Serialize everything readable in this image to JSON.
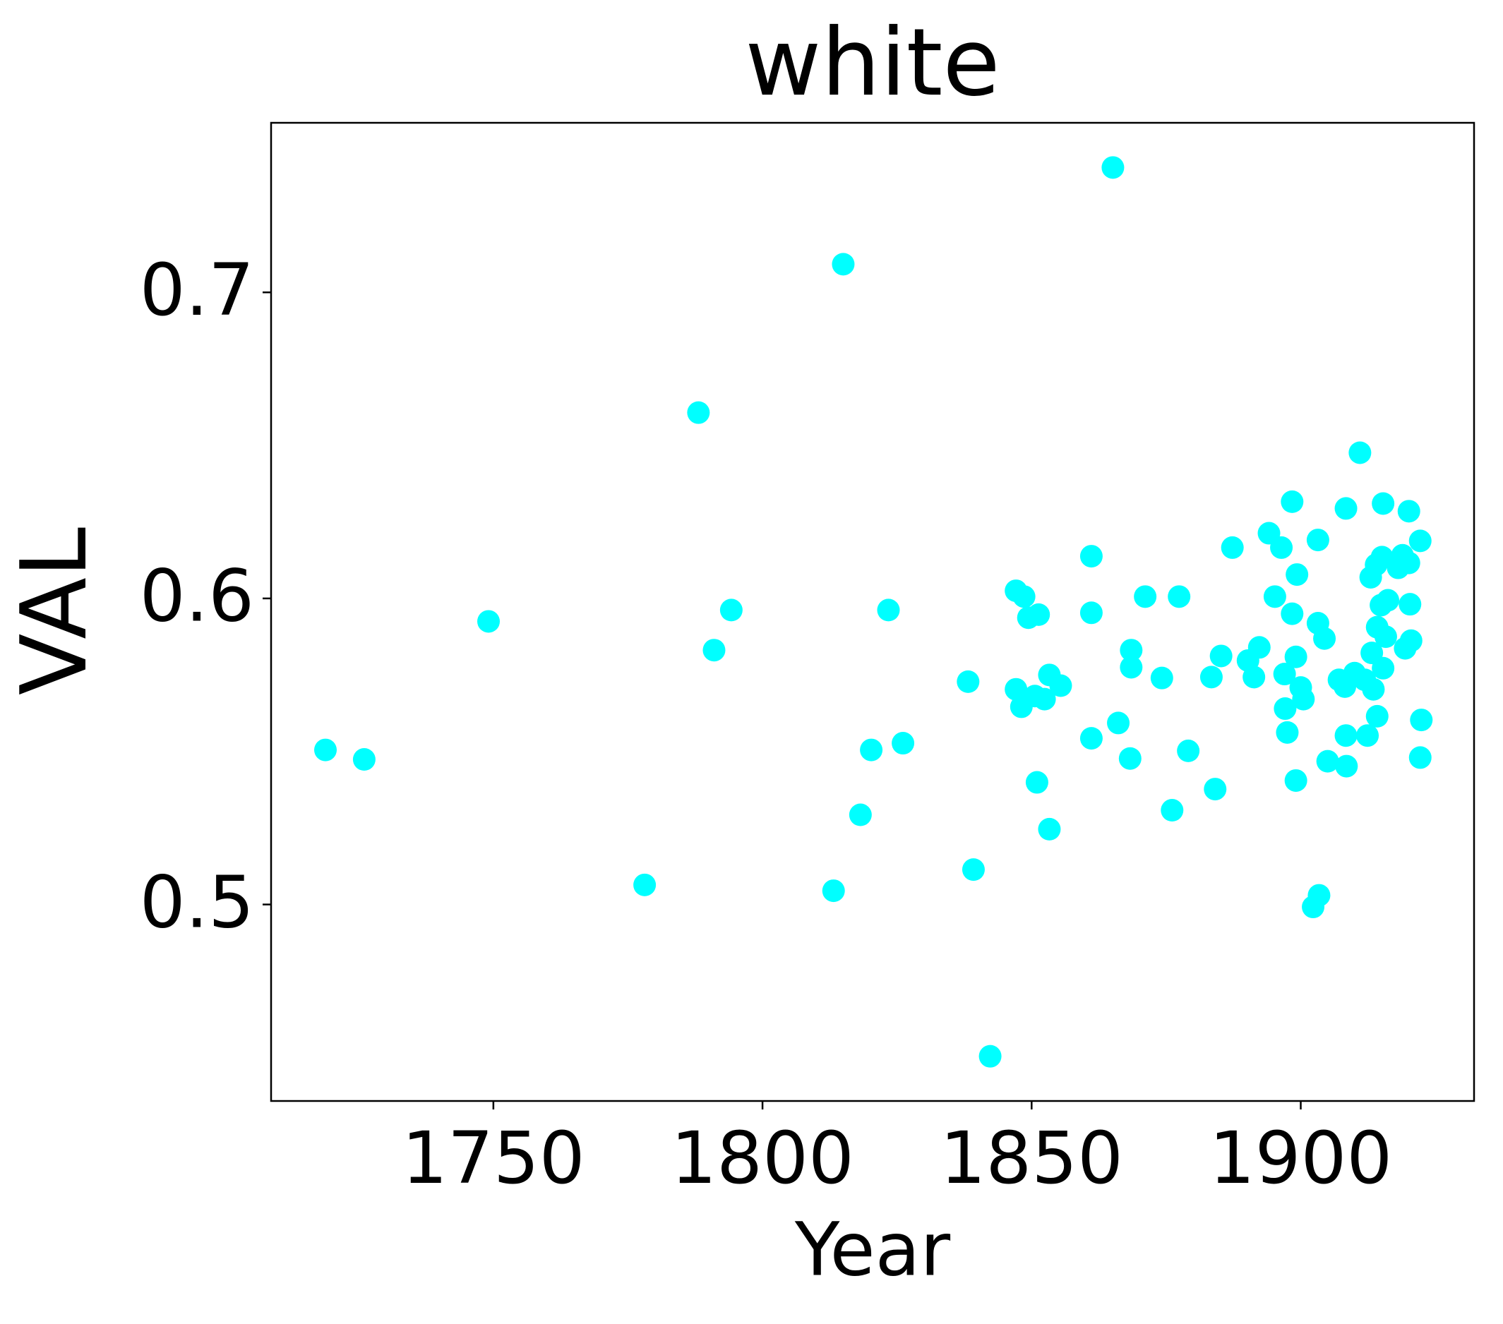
{
  "chart_data": {
    "type": "scatter",
    "title": "white",
    "x_label": "Year",
    "y_label": "VAL",
    "series": [
      {
        "color": "#00ffff",
        "x": [
          1718.8,
          1726.0,
          1749.1,
          1778.1,
          1788.1,
          1791.0,
          1794.2,
          1813.2,
          1815.0,
          1818.2,
          1820.2,
          1823.4,
          1826.1,
          1838.2,
          1839.2,
          1842.3,
          1847.1,
          1848.6,
          1847.1,
          1848.1,
          1849.4,
          1851.3,
          1850.6,
          1852.4,
          1851.0,
          1853.3,
          1853.3,
          1855.4,
          1861.1,
          1861.1,
          1861.1,
          1865.1,
          1866.1,
          1868.5,
          1868.5,
          1868.3,
          1871.1,
          1874.2,
          1876.1,
          1877.4,
          1879.1,
          1883.4,
          1884.1,
          1885.2,
          1887.3,
          1890.2,
          1891.3,
          1892.3,
          1894.1,
          1895.2,
          1896.4,
          1897.0,
          1897.1,
          1897.5,
          1898.4,
          1898.4,
          1899.3,
          1899.1,
          1899.1,
          1900.0,
          1900.5,
          1902.3,
          1903.4,
          1903.2,
          1903.2,
          1904.4,
          1905.0,
          1907.1,
          1908.2,
          1908.4,
          1908.4,
          1908.5,
          1910.0,
          1911.0,
          1911.9,
          1912.4,
          1913.0,
          1913.2,
          1913.5,
          1914.0,
          1914.2,
          1914.2,
          1914.9,
          1915.1,
          1915.3,
          1915.3,
          1915.8,
          1916.2,
          1918.1,
          1918.9,
          1919.4,
          1920.1,
          1920.1,
          1920.3,
          1920.5,
          1922.2,
          1922.4,
          1922.2
        ],
        "values": [
          0.5505,
          0.5474,
          0.5925,
          0.5064,
          0.6607,
          0.5831,
          0.5962,
          0.5045,
          0.7092,
          0.5293,
          0.5505,
          0.5962,
          0.5527,
          0.5728,
          0.5114,
          0.4504,
          0.6025,
          0.6006,
          0.5703,
          0.5646,
          0.5937,
          0.5947,
          0.5681,
          0.5671,
          0.5399,
          0.5246,
          0.575,
          0.5715,
          0.6138,
          0.5953,
          0.5543,
          0.7408,
          0.5593,
          0.5831,
          0.5775,
          0.5477,
          0.6006,
          0.574,
          0.5308,
          0.6006,
          0.5502,
          0.5743,
          0.5377,
          0.5812,
          0.6166,
          0.5797,
          0.5743,
          0.584,
          0.6213,
          0.6006,
          0.6166,
          0.5753,
          0.564,
          0.5562,
          0.6316,
          0.595,
          0.6078,
          0.5809,
          0.5405,
          0.5709,
          0.5671,
          0.4992,
          0.503,
          0.6191,
          0.5919,
          0.5869,
          0.5468,
          0.5734,
          0.5712,
          0.6294,
          0.5552,
          0.5452,
          0.5756,
          0.6476,
          0.5734,
          0.5552,
          0.6069,
          0.5822,
          0.5703,
          0.611,
          0.5615,
          0.5906,
          0.5978,
          0.6135,
          0.631,
          0.5772,
          0.5875,
          0.5994,
          0.61,
          0.6141,
          0.5837,
          0.6285,
          0.6116,
          0.5981,
          0.5862,
          0.6188,
          0.5603,
          0.548
        ]
      }
    ],
    "xlim": [
      1708.7,
      1932.2
    ],
    "ylim": [
      0.4358,
      0.7554
    ],
    "xticks": [
      1750,
      1800,
      1850,
      1900
    ],
    "yticks": [
      {
        "value": 0.5,
        "label": "0.5"
      },
      {
        "value": 0.6,
        "label": "0.6"
      },
      {
        "value": 0.7,
        "label": "0.7"
      }
    ],
    "grid": false
  }
}
